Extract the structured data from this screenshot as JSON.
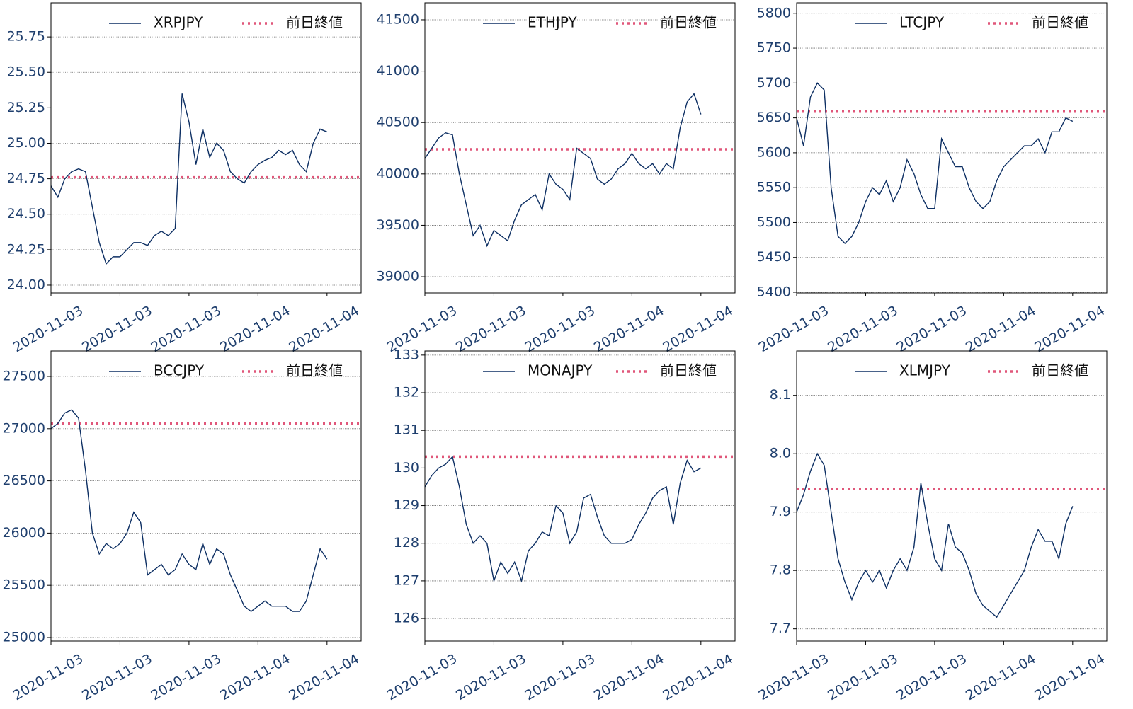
{
  "chart_data": [
    {
      "type": "line",
      "categories": [
        "2020-11-03",
        null,
        null,
        null,
        null,
        null,
        null,
        null,
        null,
        null,
        "2020-11-03",
        null,
        null,
        null,
        null,
        null,
        null,
        null,
        null,
        null,
        "2020-11-03",
        null,
        null,
        null,
        null,
        null,
        null,
        null,
        null,
        null,
        "2020-11-04",
        null,
        null,
        null,
        null,
        null,
        null,
        null,
        null,
        null,
        "2020-11-04"
      ],
      "series": [
        {
          "name": "XRPJPY",
          "color": "#0d2f63",
          "values": [
            24.7,
            24.62,
            24.75,
            24.8,
            24.82,
            24.8,
            24.55,
            24.3,
            24.15,
            24.2,
            24.2,
            24.25,
            24.3,
            24.3,
            24.28,
            24.35,
            24.38,
            24.35,
            24.4,
            25.35,
            25.15,
            24.85,
            25.1,
            24.9,
            25.0,
            24.95,
            24.8,
            24.75,
            24.72,
            24.8,
            24.85,
            24.88,
            24.9,
            24.95,
            24.92,
            24.95,
            24.85,
            24.8,
            25.0,
            25.1,
            25.08
          ]
        }
      ],
      "reference": {
        "name": "前日終値",
        "value": 24.76,
        "color": "#e0577a"
      },
      "ylim": [
        23.945,
        25.99
      ],
      "yticks": [
        {
          "value": 24,
          "label": "24.00"
        },
        24.25,
        {
          "value": 24.5,
          "label": "24.50"
        },
        24.75,
        {
          "value": 25,
          "label": "25.00"
        },
        25.25,
        {
          "value": 25.5,
          "label": "25.50"
        },
        25.75
      ],
      "grid": true
    },
    {
      "type": "line",
      "categories": [
        "2020-11-03",
        null,
        null,
        null,
        null,
        null,
        null,
        null,
        null,
        null,
        "2020-11-03",
        null,
        null,
        null,
        null,
        null,
        null,
        null,
        null,
        null,
        "2020-11-03",
        null,
        null,
        null,
        null,
        null,
        null,
        null,
        null,
        null,
        "2020-11-04",
        null,
        null,
        null,
        null,
        null,
        null,
        null,
        null,
        null,
        "2020-11-04"
      ],
      "series": [
        {
          "name": "ETHJPY",
          "color": "#0d2f63",
          "values": [
            40150,
            40250,
            40350,
            40400,
            40380,
            40000,
            39700,
            39400,
            39500,
            39300,
            39450,
            39400,
            39350,
            39550,
            39700,
            39750,
            39800,
            39650,
            40000,
            39900,
            39850,
            39750,
            40250,
            40200,
            40150,
            39950,
            39900,
            39950,
            40050,
            40100,
            40200,
            40100,
            40050,
            40100,
            40000,
            40100,
            40050,
            40450,
            40700,
            40780,
            40580
          ]
        }
      ],
      "reference": {
        "name": "前日終値",
        "value": 40240,
        "color": "#e0577a"
      },
      "ylim": [
        38842,
        41665
      ],
      "yticks": [
        39000,
        39500,
        40000,
        40500,
        41000,
        41500
      ],
      "grid": true
    },
    {
      "type": "line",
      "categories": [
        "2020-11-03",
        null,
        null,
        null,
        null,
        null,
        null,
        null,
        null,
        null,
        "2020-11-03",
        null,
        null,
        null,
        null,
        null,
        null,
        null,
        null,
        null,
        "2020-11-03",
        null,
        null,
        null,
        null,
        null,
        null,
        null,
        null,
        null,
        "2020-11-04",
        null,
        null,
        null,
        null,
        null,
        null,
        null,
        null,
        null,
        "2020-11-04"
      ],
      "series": [
        {
          "name": "LTCJPY",
          "color": "#0d2f63",
          "values": [
            5650,
            5610,
            5680,
            5700,
            5690,
            5550,
            5480,
            5470,
            5480,
            5500,
            5530,
            5550,
            5540,
            5560,
            5530,
            5550,
            5590,
            5570,
            5540,
            5520,
            5520,
            5620,
            5600,
            5580,
            5580,
            5550,
            5530,
            5520,
            5530,
            5560,
            5580,
            5590,
            5600,
            5610,
            5610,
            5620,
            5600,
            5630,
            5630,
            5650,
            5645
          ]
        }
      ],
      "reference": {
        "name": "前日終値",
        "value": 5660,
        "color": "#e0577a"
      },
      "ylim": [
        5399,
        5815
      ],
      "yticks": [
        5400,
        5450,
        5500,
        5550,
        5600,
        5650,
        5700,
        5750,
        5800
      ],
      "grid": true
    },
    {
      "type": "line",
      "categories": [
        "2020-11-03",
        null,
        null,
        null,
        null,
        null,
        null,
        null,
        null,
        null,
        "2020-11-03",
        null,
        null,
        null,
        null,
        null,
        null,
        null,
        null,
        null,
        "2020-11-03",
        null,
        null,
        null,
        null,
        null,
        null,
        null,
        null,
        null,
        "2020-11-04",
        null,
        null,
        null,
        null,
        null,
        null,
        null,
        null,
        null,
        "2020-11-04"
      ],
      "series": [
        {
          "name": "BCCJPY",
          "color": "#0d2f63",
          "values": [
            27000,
            27050,
            27150,
            27180,
            27100,
            26600,
            26000,
            25800,
            25900,
            25850,
            25900,
            26000,
            26200,
            26100,
            25600,
            25650,
            25700,
            25600,
            25650,
            25800,
            25700,
            25650,
            25900,
            25700,
            25850,
            25800,
            25600,
            25450,
            25300,
            25250,
            25300,
            25350,
            25300,
            25300,
            25300,
            25250,
            25250,
            25350,
            25600,
            25850,
            25750
          ]
        }
      ],
      "reference": {
        "name": "前日終値",
        "value": 27050,
        "color": "#e0577a"
      },
      "ylim": [
        24966,
        27744
      ],
      "yticks": [
        25000,
        25500,
        26000,
        26500,
        27000,
        27500
      ],
      "grid": true
    },
    {
      "type": "line",
      "categories": [
        "2020-11-03",
        null,
        null,
        null,
        null,
        null,
        null,
        null,
        null,
        null,
        "2020-11-03",
        null,
        null,
        null,
        null,
        null,
        null,
        null,
        null,
        null,
        "2020-11-03",
        null,
        null,
        null,
        null,
        null,
        null,
        null,
        null,
        null,
        "2020-11-04",
        null,
        null,
        null,
        null,
        null,
        null,
        null,
        null,
        null,
        "2020-11-04"
      ],
      "series": [
        {
          "name": "MONAJPY",
          "color": "#0d2f63",
          "values": [
            129.5,
            129.8,
            130.0,
            130.1,
            130.3,
            129.5,
            128.5,
            128.0,
            128.2,
            128.0,
            127.0,
            127.5,
            127.2,
            127.5,
            127.0,
            127.8,
            128.0,
            128.3,
            128.2,
            129.0,
            128.8,
            128.0,
            128.3,
            129.2,
            129.3,
            128.7,
            128.2,
            128.0,
            128.0,
            128.0,
            128.1,
            128.5,
            128.8,
            129.2,
            129.4,
            129.5,
            128.5,
            129.6,
            130.2,
            129.9,
            130.0
          ]
        }
      ],
      "reference": {
        "name": "前日終値",
        "value": 130.3,
        "color": "#e0577a"
      },
      "ylim": [
        125.4,
        133.11
      ],
      "yticks": [
        126,
        127,
        128,
        129,
        130,
        131,
        132,
        133
      ],
      "grid": true
    },
    {
      "type": "line",
      "categories": [
        "2020-11-03",
        null,
        null,
        null,
        null,
        null,
        null,
        null,
        null,
        null,
        "2020-11-03",
        null,
        null,
        null,
        null,
        null,
        null,
        null,
        null,
        null,
        "2020-11-03",
        null,
        null,
        null,
        null,
        null,
        null,
        null,
        null,
        null,
        "2020-11-04",
        null,
        null,
        null,
        null,
        null,
        null,
        null,
        null,
        null,
        "2020-11-04"
      ],
      "series": [
        {
          "name": "XLMJPY",
          "color": "#0d2f63",
          "values": [
            7.9,
            7.93,
            7.97,
            8.0,
            7.98,
            7.9,
            7.82,
            7.78,
            7.75,
            7.78,
            7.8,
            7.78,
            7.8,
            7.77,
            7.8,
            7.82,
            7.8,
            7.84,
            7.95,
            7.88,
            7.82,
            7.8,
            7.88,
            7.84,
            7.83,
            7.8,
            7.76,
            7.74,
            7.73,
            7.72,
            7.74,
            7.76,
            7.78,
            7.8,
            7.84,
            7.87,
            7.85,
            7.85,
            7.82,
            7.88,
            7.91
          ]
        }
      ],
      "reference": {
        "name": "前日終値",
        "value": 7.94,
        "color": "#e0577a"
      },
      "ylim": [
        7.679,
        8.176
      ],
      "yticks": [
        7.7,
        7.8,
        7.9,
        {
          "value": 8,
          "label": "8.0"
        },
        8.1
      ],
      "grid": true
    }
  ]
}
